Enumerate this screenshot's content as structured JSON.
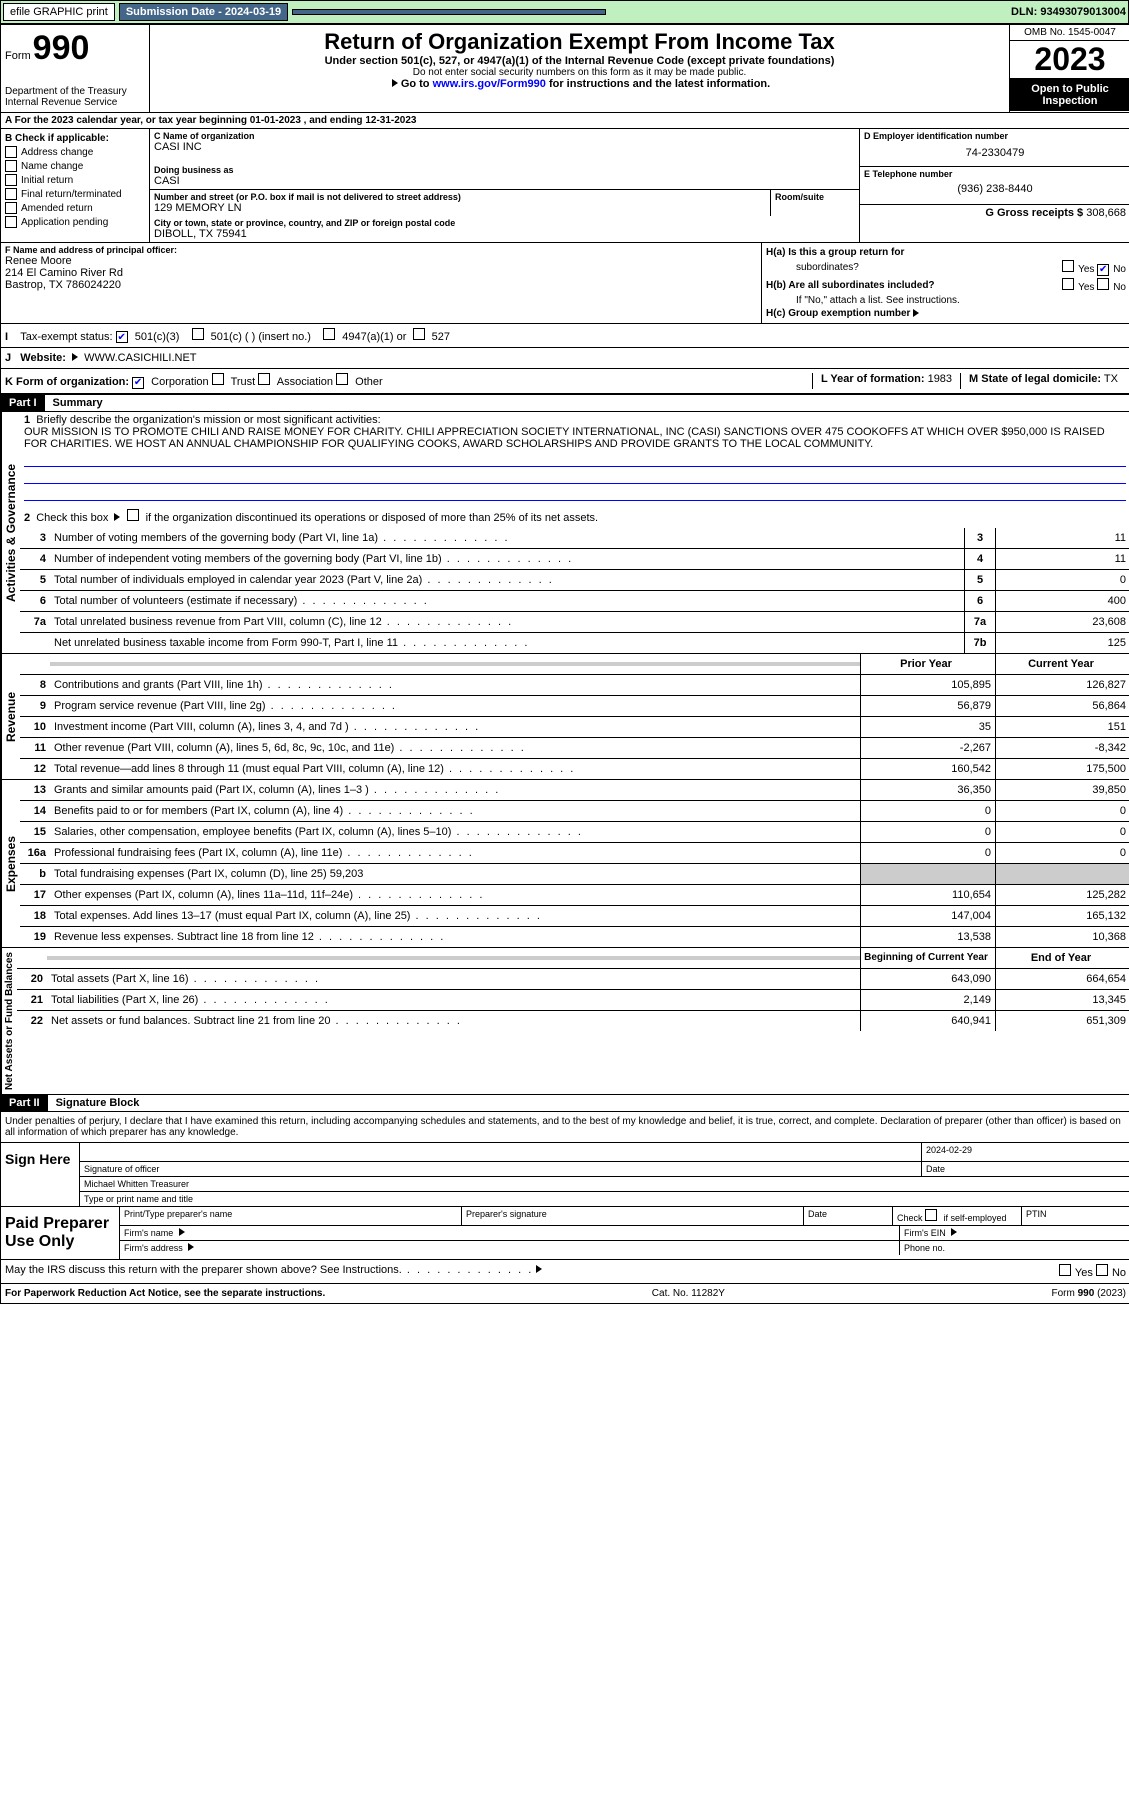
{
  "topbar": {
    "efile": "efile GRAPHIC print",
    "submission": "Submission Date - 2024-03-19",
    "dln": "DLN: 93493079013004"
  },
  "header": {
    "form_label": "Form",
    "form_num": "990",
    "title": "Return of Organization Exempt From Income Tax",
    "subtitle": "Under section 501(c), 527, or 4947(a)(1) of the Internal Revenue Code (except private foundations)",
    "ssn": "Do not enter social security numbers on this form as it may be made public.",
    "goto": "Go to www.irs.gov/Form990 for instructions and the latest information.",
    "dept": "Department of the Treasury",
    "irs": "Internal Revenue Service",
    "omb": "OMB No. 1545-0047",
    "year": "2023",
    "open": "Open to Public Inspection"
  },
  "period": "A For the 2023 calendar year, or tax year beginning 01-01-2023    , and ending 12-31-2023",
  "b": {
    "title": "B Check if applicable:",
    "items": [
      "Address change",
      "Name change",
      "Initial return",
      "Final return/terminated",
      "Amended return",
      "Application pending"
    ]
  },
  "c": {
    "name_label": "C Name of organization",
    "name": "CASI INC",
    "dba_label": "Doing business as",
    "dba": "CASI",
    "street_label": "Number and street (or P.O. box if mail is not delivered to street address)",
    "street": "129 MEMORY LN",
    "room_label": "Room/suite",
    "city_label": "City or town, state or province, country, and ZIP or foreign postal code",
    "city": "DIBOLL, TX   75941"
  },
  "d": {
    "label": "D Employer identification number",
    "value": "74-2330479"
  },
  "e": {
    "label": "E Telephone number",
    "value": "(936) 238-8440"
  },
  "g": {
    "label": "G Gross receipts $",
    "value": " 308,668"
  },
  "f": {
    "label": "F Name and address of principal officer:",
    "name": "Renee Moore",
    "addr1": "214 El Camino River Rd",
    "addr2": "Bastrop, TX   786024220"
  },
  "h": {
    "a": "H(a)  Is this a group return for",
    "a2": "subordinates?",
    "b": "H(b)  Are all subordinates included?",
    "ifno": "If \"No,\" attach a list. See instructions.",
    "c": "H(c)  Group exemption number",
    "yes": "Yes",
    "no": "No"
  },
  "i": {
    "label": "Tax-exempt status:",
    "o1": "501(c)(3)",
    "o2": "501(c) (   ) (insert no.)",
    "o3": "4947(a)(1) or",
    "o4": "527"
  },
  "j": {
    "label": "Website:",
    "value": "WWW.CASICHILI.NET"
  },
  "k": {
    "label": "K Form of organization:",
    "o1": "Corporation",
    "o2": "Trust",
    "o3": "Association",
    "o4": "Other"
  },
  "l": {
    "label": "L Year of formation:",
    "value": " 1983"
  },
  "m": {
    "label": "M State of legal domicile:",
    "value": " TX"
  },
  "part1": {
    "header": "Part I",
    "title": "Summary",
    "mission_label": "Briefly describe the organization's mission or most significant activities:",
    "mission": "OUR MISSION IS TO PROMOTE CHILI AND RAISE MONEY FOR CHARITY. CHILI APPRECIATION SOCIETY INTERNATIONAL, INC (CASI) SANCTIONS OVER 475 COOKOFFS AT WHICH OVER $950,000 IS RAISED FOR CHARITIES. WE HOST AN ANNUAL CHAMPIONSHIP FOR QUALIFYING COOKS, AWARD SCHOLARSHIPS AND PROVIDE GRANTS TO THE LOCAL COMMUNITY.",
    "line2": "Check this box        if the organization discontinued its operations or disposed of more than 25% of its net assets.",
    "side_gov": "Activities & Governance",
    "side_rev": "Revenue",
    "side_exp": "Expenses",
    "side_net": "Net Assets or Fund Balances",
    "lines_gov": [
      {
        "n": "3",
        "t": "Number of voting members of the governing body (Part VI, line 1a)",
        "b": "3",
        "v": "11"
      },
      {
        "n": "4",
        "t": "Number of independent voting members of the governing body (Part VI, line 1b)",
        "b": "4",
        "v": "11"
      },
      {
        "n": "5",
        "t": "Total number of individuals employed in calendar year 2023 (Part V, line 2a)",
        "b": "5",
        "v": "0"
      },
      {
        "n": "6",
        "t": "Total number of volunteers (estimate if necessary)",
        "b": "6",
        "v": "400"
      },
      {
        "n": "7a",
        "t": "Total unrelated business revenue from Part VIII, column (C), line 12",
        "b": "7a",
        "v": "23,608"
      },
      {
        "n": "",
        "t": "Net unrelated business taxable income from Form 990-T, Part I, line 11",
        "b": "7b",
        "v": "125"
      }
    ],
    "col_prior": "Prior Year",
    "col_current": "Current Year",
    "lines_rev": [
      {
        "n": "8",
        "t": "Contributions and grants (Part VIII, line 1h)",
        "p": "105,895",
        "c": "126,827"
      },
      {
        "n": "9",
        "t": "Program service revenue (Part VIII, line 2g)",
        "p": "56,879",
        "c": "56,864"
      },
      {
        "n": "10",
        "t": "Investment income (Part VIII, column (A), lines 3, 4, and 7d )",
        "p": "35",
        "c": "151"
      },
      {
        "n": "11",
        "t": "Other revenue (Part VIII, column (A), lines 5, 6d, 8c, 9c, 10c, and 11e)",
        "p": "-2,267",
        "c": "-8,342"
      },
      {
        "n": "12",
        "t": "Total revenue—add lines 8 through 11 (must equal Part VIII, column (A), line 12)",
        "p": "160,542",
        "c": "175,500"
      }
    ],
    "lines_exp": [
      {
        "n": "13",
        "t": "Grants and similar amounts paid (Part IX, column (A), lines 1–3 )",
        "p": "36,350",
        "c": "39,850"
      },
      {
        "n": "14",
        "t": "Benefits paid to or for members (Part IX, column (A), line 4)",
        "p": "0",
        "c": "0"
      },
      {
        "n": "15",
        "t": "Salaries, other compensation, employee benefits (Part IX, column (A), lines 5–10)",
        "p": "0",
        "c": "0"
      },
      {
        "n": "16a",
        "t": "Professional fundraising fees (Part IX, column (A), line 11e)",
        "p": "0",
        "c": "0"
      },
      {
        "n": "b",
        "t": "Total fundraising expenses (Part IX, column (D), line 25) 59,203",
        "p": "",
        "c": "",
        "grey": true
      },
      {
        "n": "17",
        "t": "Other expenses (Part IX, column (A), lines 11a–11d, 11f–24e)",
        "p": "110,654",
        "c": "125,282"
      },
      {
        "n": "18",
        "t": "Total expenses. Add lines 13–17 (must equal Part IX, column (A), line 25)",
        "p": "147,004",
        "c": "165,132"
      },
      {
        "n": "19",
        "t": "Revenue less expenses. Subtract line 18 from line 12",
        "p": "13,538",
        "c": "10,368"
      }
    ],
    "col_begin": "Beginning of Current Year",
    "col_end": "End of Year",
    "lines_net": [
      {
        "n": "20",
        "t": "Total assets (Part X, line 16)",
        "p": "643,090",
        "c": "664,654"
      },
      {
        "n": "21",
        "t": "Total liabilities (Part X, line 26)",
        "p": "2,149",
        "c": "13,345"
      },
      {
        "n": "22",
        "t": "Net assets or fund balances. Subtract line 21 from line 20",
        "p": "640,941",
        "c": "651,309"
      }
    ]
  },
  "part2": {
    "header": "Part II",
    "title": "Signature Block",
    "decl": "Under penalties of perjury, I declare that I have examined this return, including accompanying schedules and statements, and to the best of my knowledge and belief, it is true, correct, and complete. Declaration of preparer (other than officer) is based on all information of which preparer has any knowledge.",
    "sign": "Sign Here",
    "sig_officer": "Signature of officer",
    "sig_name": "Michael Whitten  Treasurer",
    "sig_type": "Type or print name and title",
    "date_label": "Date",
    "date": "2024-02-29",
    "paid": "Paid Preparer Use Only",
    "pt_name": "Print/Type preparer's name",
    "pt_sig": "Preparer's signature",
    "pt_date": "Date",
    "pt_check": "Check         if self-employed",
    "pt_ptin": "PTIN",
    "firm_name": "Firm's name",
    "firm_ein": "Firm's EIN",
    "firm_addr": "Firm's address",
    "firm_phone": "Phone no.",
    "discuss": "May the IRS discuss this return with the preparer shown above? See Instructions.",
    "yes": "Yes",
    "no": "No"
  },
  "footer": {
    "pra": "For Paperwork Reduction Act Notice, see the separate instructions.",
    "cat": "Cat. No. 11282Y",
    "form": "Form 990 (2023)"
  }
}
